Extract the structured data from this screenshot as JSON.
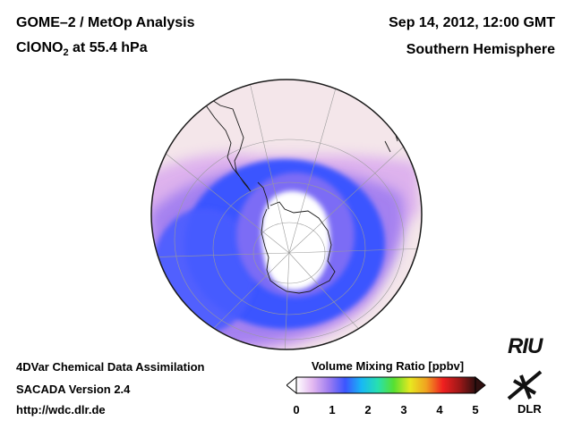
{
  "header": {
    "title_left": "GOME–2 / MetOp Analysis",
    "species_prefix": "ClONO",
    "species_subscript": "2",
    "species_suffix": " at 55.4 hPa",
    "date": "Sep 14, 2012, 12:00 GMT",
    "region": "Southern Hemisphere"
  },
  "footer": {
    "line1": "4DVar Chemical Data Assimilation",
    "line2": "SACADA Version 2.4",
    "line3": "http://wdc.dlr.de"
  },
  "colorbar": {
    "title": "Volume Mixing Ratio [ppbv]",
    "ticks": [
      "0",
      "1",
      "2",
      "3",
      "4",
      "5"
    ],
    "range": [
      0,
      5
    ],
    "colors": [
      "#ffffff",
      "#e3b8f0",
      "#9e7cf0",
      "#3b55ff",
      "#18b8f5",
      "#27e0b0",
      "#57e030",
      "#e8e820",
      "#f0a020",
      "#f02020",
      "#a01818",
      "#301010"
    ]
  },
  "logos": {
    "riu": "RIU",
    "dlr": "DLR"
  },
  "map": {
    "projection": "orthographic",
    "hemisphere": "south",
    "background_color": "#f4e6ea",
    "low_ring_color": "#3b55ff",
    "mid_ring_color": "#9e7cf0",
    "vortex_core_color": "#ffffff"
  }
}
